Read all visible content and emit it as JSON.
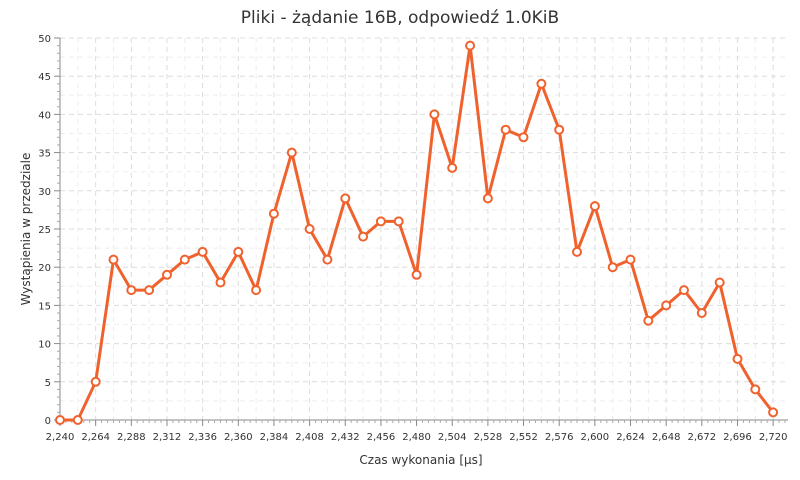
{
  "chart_data": {
    "type": "line",
    "title": "Pliki - żądanie 16B, odpowiedź 1.0KiB",
    "xlabel": "Czas wykonania [µs]",
    "ylabel": "Wystąpienia w przedziale",
    "xlim": [
      2240,
      2730
    ],
    "ylim": [
      0,
      50
    ],
    "x_ticks": [
      "2,240",
      "2,264",
      "2,288",
      "2,312",
      "2,336",
      "2,360",
      "2,384",
      "2,408",
      "2,432",
      "2,456",
      "2,480",
      "2,504",
      "2,528",
      "2,552",
      "2,576",
      "2,600",
      "2,624",
      "2,648",
      "2,672",
      "2,696",
      "2,720"
    ],
    "x_tick_values": [
      2240,
      2264,
      2288,
      2312,
      2336,
      2360,
      2384,
      2408,
      2432,
      2456,
      2480,
      2504,
      2528,
      2552,
      2576,
      2600,
      2624,
      2648,
      2672,
      2696,
      2720
    ],
    "y_ticks": [
      "0",
      "5",
      "10",
      "15",
      "20",
      "25",
      "30",
      "35",
      "40",
      "45",
      "50"
    ],
    "y_tick_values": [
      0,
      5,
      10,
      15,
      20,
      25,
      30,
      35,
      40,
      45,
      50
    ],
    "grid": true,
    "color": "#f0622d",
    "series": [
      {
        "x": [
          2240,
          2252,
          2264,
          2276,
          2288,
          2300,
          2312,
          2324,
          2336,
          2348,
          2360,
          2372,
          2384,
          2396,
          2408,
          2420,
          2432,
          2444,
          2456,
          2468,
          2480,
          2492,
          2504,
          2516,
          2528,
          2540,
          2552,
          2564,
          2576,
          2588,
          2600,
          2612,
          2624,
          2636,
          2648,
          2660,
          2672,
          2684,
          2696,
          2708,
          2720
        ],
        "values": [
          0,
          0,
          5,
          21,
          17,
          17,
          19,
          21,
          22,
          18,
          22,
          17,
          27,
          35,
          25,
          21,
          29,
          24,
          26,
          26,
          19,
          40,
          33,
          49,
          29,
          38,
          37,
          44,
          38,
          22,
          28,
          20,
          21,
          13,
          15,
          17,
          14,
          18,
          8,
          4,
          1
        ]
      }
    ]
  }
}
